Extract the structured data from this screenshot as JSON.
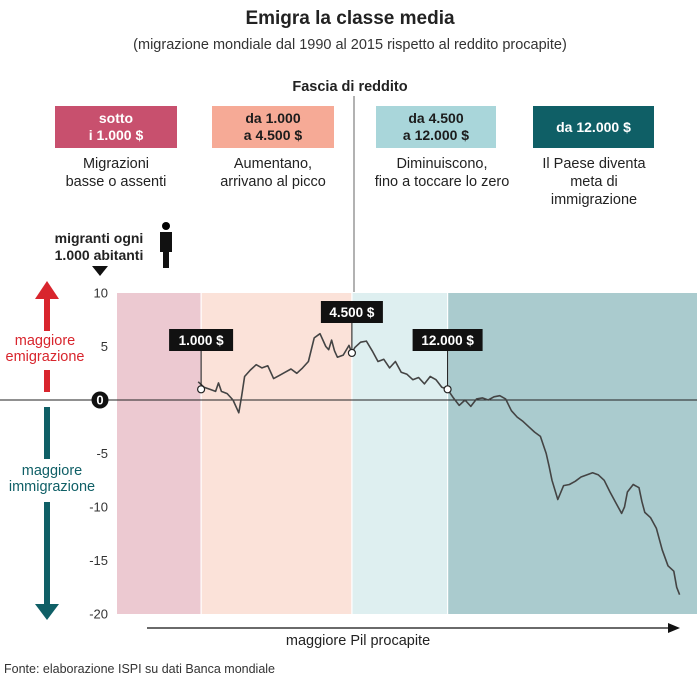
{
  "chart_data": {
    "type": "line",
    "title": "Emigra la classe media",
    "subtitle": "(migrazione mondiale dal 1990 al 2015 rispetto al reddito procapite)",
    "band_header": "Fascia di reddito",
    "ylabel": "migranti ogni 1.000 abitanti",
    "xlabel": "maggiore Pil procapite",
    "ylim": [
      -20,
      10
    ],
    "yticks": [
      10,
      5,
      0,
      -5,
      -10,
      -15,
      -20
    ],
    "ytick_labels": [
      "10",
      "5",
      "0",
      "-5",
      "-10",
      "-15",
      "-20"
    ],
    "up_label": "maggiore emigrazione",
    "down_label": "maggiore immigrazione",
    "grid": false,
    "x_scale": "GDP per capita (no numeric tick labels)",
    "bands": [
      {
        "box_label": "sotto i 1.000 $",
        "box_lines": [
          "sotto",
          "i 1.000 $"
        ],
        "desc_lines": [
          "Migrazioni",
          "basse o assenti"
        ],
        "color": "#c8506e",
        "fill": "#ecc9d1"
      },
      {
        "box_label": "da 1.000 a 4.500 $",
        "box_lines": [
          "da 1.000",
          "a 4.500 $"
        ],
        "desc_lines": [
          "Aumentano,",
          "arrivano al picco"
        ],
        "color": "#f6aa96",
        "fill": "#fbe2d9"
      },
      {
        "box_label": "da 4.500 a 12.000 $",
        "box_lines": [
          "da 4.500",
          "a 12.000 $"
        ],
        "desc_lines": [
          "Diminuiscono,",
          "fino a toccare lo zero"
        ],
        "color": "#a9d6da",
        "fill": "#deeff0"
      },
      {
        "box_label": "da 12.000 $",
        "box_lines": [
          "da 12.000 $"
        ],
        "desc_lines": [
          "Il Paese diventa",
          "meta di",
          "immigrazione"
        ],
        "color": "#0f5f66",
        "fill": "#aacbce"
      }
    ],
    "thresholds": [
      {
        "label": "1.000 $",
        "x_frac": 0.145,
        "y": 1.0
      },
      {
        "label": "4.500 $",
        "x_frac": 0.405,
        "y": 4.4
      },
      {
        "label": "12.000 $",
        "x_frac": 0.57,
        "y": 1.0
      }
    ],
    "series": [
      {
        "color": "#444444",
        "x": [
          0.14,
          0.15,
          0.16,
          0.17,
          0.175,
          0.18,
          0.19,
          0.2,
          0.21,
          0.215,
          0.22,
          0.23,
          0.24,
          0.25,
          0.26,
          0.27,
          0.28,
          0.29,
          0.3,
          0.31,
          0.32,
          0.33,
          0.34,
          0.35,
          0.36,
          0.365,
          0.37,
          0.375,
          0.38,
          0.39,
          0.4,
          0.405,
          0.41,
          0.42,
          0.43,
          0.44,
          0.45,
          0.46,
          0.47,
          0.48,
          0.49,
          0.5,
          0.51,
          0.52,
          0.53,
          0.54,
          0.55,
          0.56,
          0.57,
          0.58,
          0.59,
          0.6,
          0.61,
          0.62,
          0.63,
          0.64,
          0.65,
          0.66,
          0.67,
          0.68,
          0.69,
          0.7,
          0.71,
          0.72,
          0.73,
          0.74,
          0.745,
          0.75,
          0.76,
          0.77,
          0.78,
          0.79,
          0.8,
          0.81,
          0.82,
          0.83,
          0.84,
          0.85,
          0.86,
          0.87,
          0.875,
          0.88,
          0.89,
          0.9,
          0.905,
          0.91,
          0.92,
          0.93,
          0.94,
          0.95,
          0.96,
          0.965,
          0.97
        ],
        "y": [
          1.7,
          1.2,
          1.0,
          0.8,
          1.6,
          0.8,
          0.6,
          0.0,
          -1.2,
          0.4,
          2.2,
          2.8,
          3.3,
          3.0,
          3.2,
          2.0,
          2.3,
          2.6,
          2.9,
          2.5,
          3.0,
          3.6,
          5.8,
          6.2,
          5.0,
          4.7,
          5.6,
          4.6,
          4.0,
          4.2,
          5.1,
          4.4,
          4.9,
          5.4,
          5.5,
          4.6,
          3.6,
          3.8,
          3.0,
          3.6,
          2.6,
          2.4,
          1.9,
          2.1,
          1.5,
          2.2,
          1.9,
          1.2,
          1.0,
          0.2,
          -0.5,
          0.0,
          -0.6,
          0.1,
          0.2,
          0.0,
          0.3,
          0.4,
          0.1,
          -1.0,
          -1.6,
          -2.0,
          -2.5,
          -3.0,
          -3.4,
          -5.0,
          -6.2,
          -7.5,
          -9.3,
          -8.0,
          -7.9,
          -7.6,
          -7.2,
          -7.0,
          -6.8,
          -7.0,
          -7.5,
          -8.6,
          -9.6,
          -10.6,
          -10.0,
          -8.6,
          -7.9,
          -8.2,
          -9.5,
          -10.5,
          -11.0,
          -12.0,
          -14.0,
          -15.5,
          -16.0,
          -17.5,
          -18.2
        ]
      }
    ]
  },
  "footer": "Fonte: elaborazione ISPI su dati Banca mondiale"
}
